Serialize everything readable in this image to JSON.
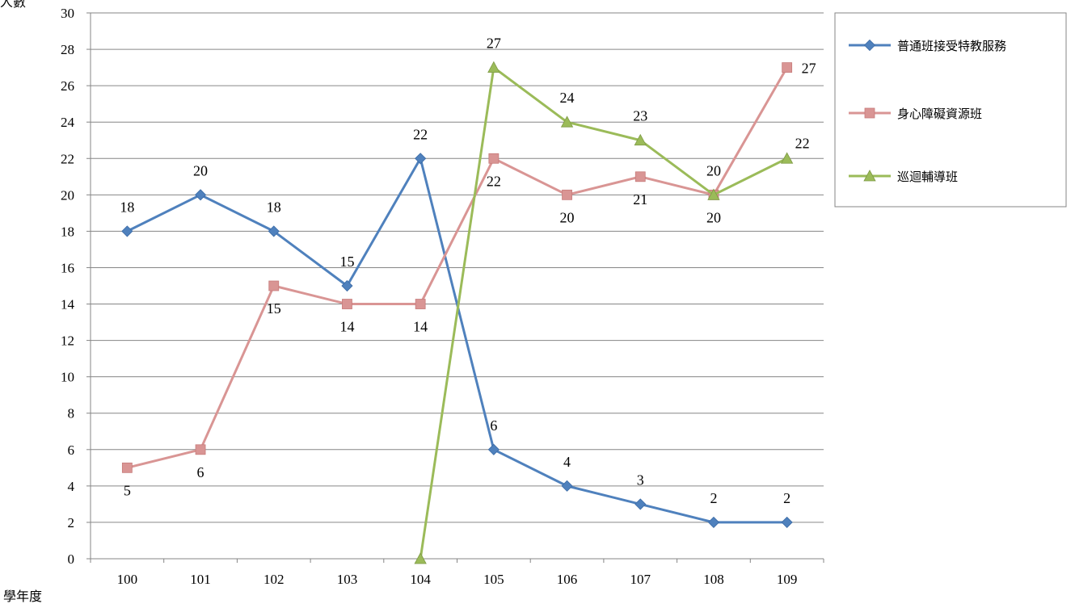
{
  "chart_data": {
    "type": "line",
    "ylabel": "人數",
    "xlabel": "學年度",
    "categories": [
      "100",
      "101",
      "102",
      "103",
      "104",
      "105",
      "106",
      "107",
      "108",
      "109"
    ],
    "ylim": [
      0,
      30
    ],
    "ytick_step": 2,
    "grid": "horizontal",
    "legend_position": "right",
    "series": [
      {
        "name": "普通班接受特教服務",
        "color": "#4F81BD",
        "marker": "diamond",
        "values": [
          18,
          20,
          18,
          15,
          22,
          6,
          4,
          3,
          2,
          2
        ],
        "label_pos": [
          "above",
          "above",
          "above",
          "above",
          "above",
          "above",
          "above",
          "above",
          "above",
          "above"
        ]
      },
      {
        "name": "身心障礙資源班",
        "color": "#D99594",
        "marker": "square",
        "values": [
          5,
          6,
          15,
          14,
          14,
          22,
          20,
          21,
          20,
          27
        ],
        "label_pos": [
          "below",
          "below",
          "below",
          "below",
          "below",
          "below",
          "below",
          "below",
          "below",
          "right"
        ]
      },
      {
        "name": "巡迴輔導班",
        "color": "#9BBB59",
        "marker": "triangle",
        "values": [
          null,
          null,
          null,
          null,
          0,
          27,
          24,
          23,
          20,
          22
        ],
        "label_pos": [
          "none",
          "none",
          "none",
          "none",
          "none",
          "above",
          "above",
          "above",
          "above",
          "aboveright"
        ]
      }
    ]
  }
}
